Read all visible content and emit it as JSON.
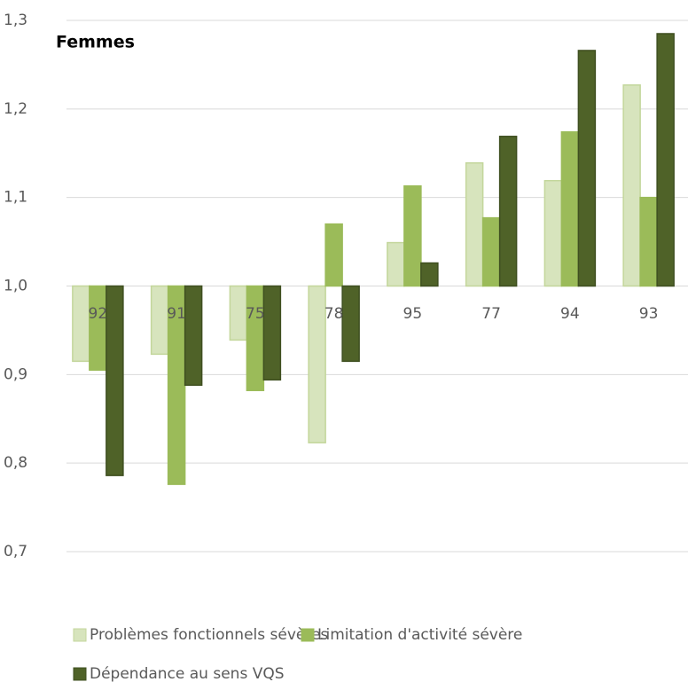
{
  "chart_data": {
    "type": "bar",
    "title": "Femmes",
    "categories": [
      "92",
      "91",
      "75",
      "78",
      "95",
      "77",
      "94",
      "93"
    ],
    "series": [
      {
        "name": "Problèmes fonctionnels sévères",
        "color": "#d7e4bd",
        "values": [
          0.915,
          0.923,
          0.939,
          0.823,
          1.049,
          1.139,
          1.119,
          1.227
        ]
      },
      {
        "name": "Limitation d'activité sévère",
        "color": "#9bbb59",
        "values": [
          0.905,
          0.776,
          0.882,
          1.07,
          1.113,
          1.077,
          1.174,
          1.1
        ]
      },
      {
        "name": "Dépendance au sens VQS",
        "color": "#4f6228",
        "values": [
          0.786,
          0.888,
          0.894,
          0.915,
          1.026,
          1.169,
          1.266,
          1.285
        ]
      }
    ],
    "baseline": 1.0,
    "ylim": [
      0.7,
      1.3
    ],
    "yticks": [
      {
        "value": 0.7,
        "label": "0,7"
      },
      {
        "value": 0.8,
        "label": "0,8"
      },
      {
        "value": 0.9,
        "label": "0,9"
      },
      {
        "value": 1.0,
        "label": "1,0"
      },
      {
        "value": 1.1,
        "label": "1,1"
      },
      {
        "value": 1.2,
        "label": "1,2"
      },
      {
        "value": 1.3,
        "label": "1,3"
      }
    ],
    "grid": true,
    "legend": "bottom"
  }
}
